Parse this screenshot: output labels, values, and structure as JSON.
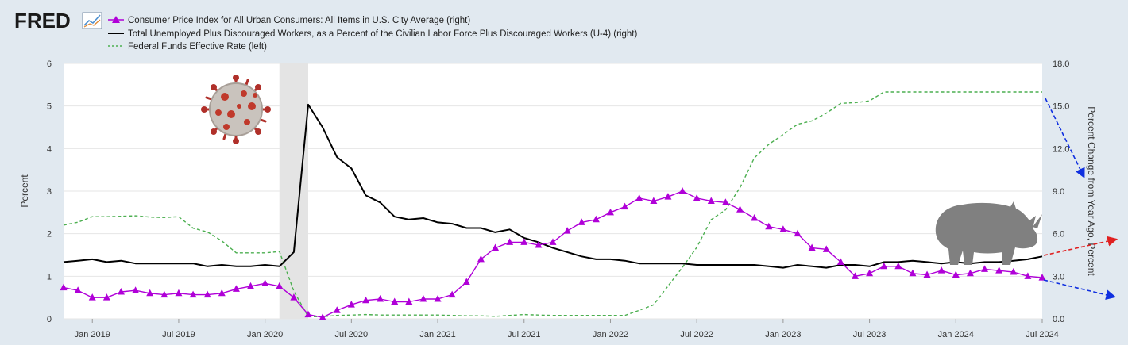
{
  "app": {
    "logo_text": "FRED"
  },
  "legend": [
    {
      "label": "Consumer Price Index for All Urban Consumers: All Items in U.S. City Average (right)",
      "color": "#b000d8",
      "style": "marker-line"
    },
    {
      "label": "Total Unemployed Plus Discouraged Workers, as a Percent of the Civilian Labor Force Plus Discouraged Workers (U-4) (right)",
      "color": "#000000",
      "style": "solid"
    },
    {
      "label": "Federal Funds Effective Rate (left)",
      "color": "#4caf50",
      "style": "dashed"
    }
  ],
  "icons": [
    "covid-virus-icon",
    "rhino-icon",
    "fred-chart-icon"
  ],
  "chart_data": {
    "type": "line",
    "x_ticks": [
      "Jan 2019",
      "Jul 2019",
      "Jan 2020",
      "Jul 2020",
      "Jan 2021",
      "Jul 2021",
      "Jan 2022",
      "Jul 2022",
      "Jan 2023",
      "Jul 2023",
      "Jan 2024",
      "Jul 2024"
    ],
    "x_range": [
      "2018-11",
      "2024-07"
    ],
    "y_left": {
      "label": "Percent",
      "ticks": [
        "0",
        "1",
        "2",
        "3",
        "4",
        "5",
        "6"
      ],
      "ylim": [
        0,
        6
      ]
    },
    "y_right": {
      "label": "Percent Change from Year Ago, Percent",
      "ticks": [
        "0.0",
        "3.0",
        "6.0",
        "9.0",
        "12.0",
        "15.0",
        "18.0"
      ],
      "ylim": [
        0,
        18
      ]
    },
    "recession_shading": {
      "start": "2020-02",
      "end": "2020-04",
      "color": "#e4e4e4"
    },
    "grid": true,
    "series": [
      {
        "name": "Federal Funds Effective Rate (left)",
        "axis": "left",
        "color": "#4caf50",
        "style": "dashed",
        "x": [
          "2018-11",
          "2018-12",
          "2019-01",
          "2019-02",
          "2019-03",
          "2019-04",
          "2019-05",
          "2019-06",
          "2019-07",
          "2019-08",
          "2019-09",
          "2019-10",
          "2019-11",
          "2019-12",
          "2020-01",
          "2020-02",
          "2020-03",
          "2020-04",
          "2020-05",
          "2020-06",
          "2020-07",
          "2020-08",
          "2020-09",
          "2020-10",
          "2020-11",
          "2020-12",
          "2021-01",
          "2021-02",
          "2021-03",
          "2021-04",
          "2021-05",
          "2021-06",
          "2021-07",
          "2021-08",
          "2021-09",
          "2021-10",
          "2021-11",
          "2021-12",
          "2022-01",
          "2022-02",
          "2022-03",
          "2022-04",
          "2022-05",
          "2022-06",
          "2022-07",
          "2022-08",
          "2022-09",
          "2022-10",
          "2022-11",
          "2022-12",
          "2023-01",
          "2023-02",
          "2023-03",
          "2023-04",
          "2023-05",
          "2023-06",
          "2023-07",
          "2023-08",
          "2023-09",
          "2023-10",
          "2023-11",
          "2023-12",
          "2024-01",
          "2024-02",
          "2024-03",
          "2024-04",
          "2024-05",
          "2024-06",
          "2024-07"
        ],
        "values": [
          2.2,
          2.27,
          2.4,
          2.4,
          2.41,
          2.42,
          2.39,
          2.38,
          2.4,
          2.13,
          2.04,
          1.83,
          1.55,
          1.55,
          1.55,
          1.58,
          0.65,
          0.05,
          0.05,
          0.08,
          0.09,
          0.1,
          0.09,
          0.09,
          0.09,
          0.09,
          0.09,
          0.08,
          0.07,
          0.07,
          0.06,
          0.08,
          0.1,
          0.09,
          0.08,
          0.08,
          0.08,
          0.08,
          0.08,
          0.08,
          0.2,
          0.33,
          0.77,
          1.21,
          1.68,
          2.33,
          2.56,
          3.08,
          3.78,
          4.1,
          4.33,
          4.57,
          4.65,
          4.83,
          5.06,
          5.08,
          5.12,
          5.33,
          5.33,
          5.33,
          5.33,
          5.33,
          5.33,
          5.33,
          5.33,
          5.33,
          5.33,
          5.33,
          5.33
        ]
      },
      {
        "name": "Total Unemployed Plus Discouraged Workers, as a Percent of the Civilian Labor Force Plus Discouraged Workers (U-4) (right)",
        "axis": "right",
        "color": "#000000",
        "style": "solid",
        "x": [
          "2018-11",
          "2018-12",
          "2019-01",
          "2019-02",
          "2019-03",
          "2019-04",
          "2019-05",
          "2019-06",
          "2019-07",
          "2019-08",
          "2019-09",
          "2019-10",
          "2019-11",
          "2019-12",
          "2020-01",
          "2020-02",
          "2020-03",
          "2020-04",
          "2020-05",
          "2020-06",
          "2020-07",
          "2020-08",
          "2020-09",
          "2020-10",
          "2020-11",
          "2020-12",
          "2021-01",
          "2021-02",
          "2021-03",
          "2021-04",
          "2021-05",
          "2021-06",
          "2021-07",
          "2021-08",
          "2021-09",
          "2021-10",
          "2021-11",
          "2021-12",
          "2022-01",
          "2022-02",
          "2022-03",
          "2022-04",
          "2022-05",
          "2022-06",
          "2022-07",
          "2022-08",
          "2022-09",
          "2022-10",
          "2022-11",
          "2022-12",
          "2023-01",
          "2023-02",
          "2023-03",
          "2023-04",
          "2023-05",
          "2023-06",
          "2023-07",
          "2023-08",
          "2023-09",
          "2023-10",
          "2023-11",
          "2023-12",
          "2024-01",
          "2024-02",
          "2024-03",
          "2024-04",
          "2024-05",
          "2024-06",
          "2024-07"
        ],
        "values": [
          4.0,
          4.1,
          4.2,
          4.0,
          4.1,
          3.9,
          3.9,
          3.9,
          3.9,
          3.9,
          3.7,
          3.8,
          3.7,
          3.7,
          3.8,
          3.7,
          4.7,
          15.1,
          13.5,
          11.4,
          10.6,
          8.7,
          8.2,
          7.2,
          7.0,
          7.1,
          6.8,
          6.7,
          6.4,
          6.4,
          6.1,
          6.3,
          5.7,
          5.4,
          5.0,
          4.7,
          4.4,
          4.2,
          4.2,
          4.1,
          3.9,
          3.9,
          3.9,
          3.9,
          3.8,
          3.8,
          3.8,
          3.8,
          3.8,
          3.7,
          3.6,
          3.8,
          3.7,
          3.6,
          3.8,
          3.8,
          3.7,
          4.0,
          4.0,
          4.1,
          4.0,
          3.9,
          4.0,
          3.9,
          4.0,
          4.0,
          4.1,
          4.2,
          4.4
        ]
      },
      {
        "name": "Consumer Price Index for All Urban Consumers: All Items in U.S. City Average (right)",
        "axis": "right",
        "color": "#b000d8",
        "style": "marker-line",
        "marker": "triangle",
        "x": [
          "2018-11",
          "2018-12",
          "2019-01",
          "2019-02",
          "2019-03",
          "2019-04",
          "2019-05",
          "2019-06",
          "2019-07",
          "2019-08",
          "2019-09",
          "2019-10",
          "2019-11",
          "2019-12",
          "2020-01",
          "2020-02",
          "2020-03",
          "2020-04",
          "2020-05",
          "2020-06",
          "2020-07",
          "2020-08",
          "2020-09",
          "2020-10",
          "2020-11",
          "2020-12",
          "2021-01",
          "2021-02",
          "2021-03",
          "2021-04",
          "2021-05",
          "2021-06",
          "2021-07",
          "2021-08",
          "2021-09",
          "2021-10",
          "2021-11",
          "2021-12",
          "2022-01",
          "2022-02",
          "2022-03",
          "2022-04",
          "2022-05",
          "2022-06",
          "2022-07",
          "2022-08",
          "2022-09",
          "2022-10",
          "2022-11",
          "2022-12",
          "2023-01",
          "2023-02",
          "2023-03",
          "2023-04",
          "2023-05",
          "2023-06",
          "2023-07",
          "2023-08",
          "2023-09",
          "2023-10",
          "2023-11",
          "2023-12",
          "2024-01",
          "2024-02",
          "2024-03",
          "2024-04",
          "2024-05",
          "2024-06",
          "2024-07"
        ],
        "values": [
          2.2,
          2.0,
          1.5,
          1.5,
          1.9,
          2.0,
          1.8,
          1.7,
          1.8,
          1.7,
          1.7,
          1.8,
          2.1,
          2.3,
          2.5,
          2.3,
          1.5,
          0.3,
          0.1,
          0.6,
          1.0,
          1.3,
          1.4,
          1.2,
          1.2,
          1.4,
          1.4,
          1.7,
          2.6,
          4.2,
          5.0,
          5.4,
          5.4,
          5.2,
          5.4,
          6.2,
          6.8,
          7.0,
          7.5,
          7.9,
          8.5,
          8.3,
          8.6,
          9.0,
          8.5,
          8.3,
          8.2,
          7.7,
          7.1,
          6.5,
          6.3,
          6.0,
          5.0,
          4.9,
          4.0,
          3.0,
          3.2,
          3.7,
          3.7,
          3.2,
          3.1,
          3.4,
          3.1,
          3.2,
          3.5,
          3.4,
          3.3,
          3.0,
          2.9
        ]
      }
    ]
  }
}
